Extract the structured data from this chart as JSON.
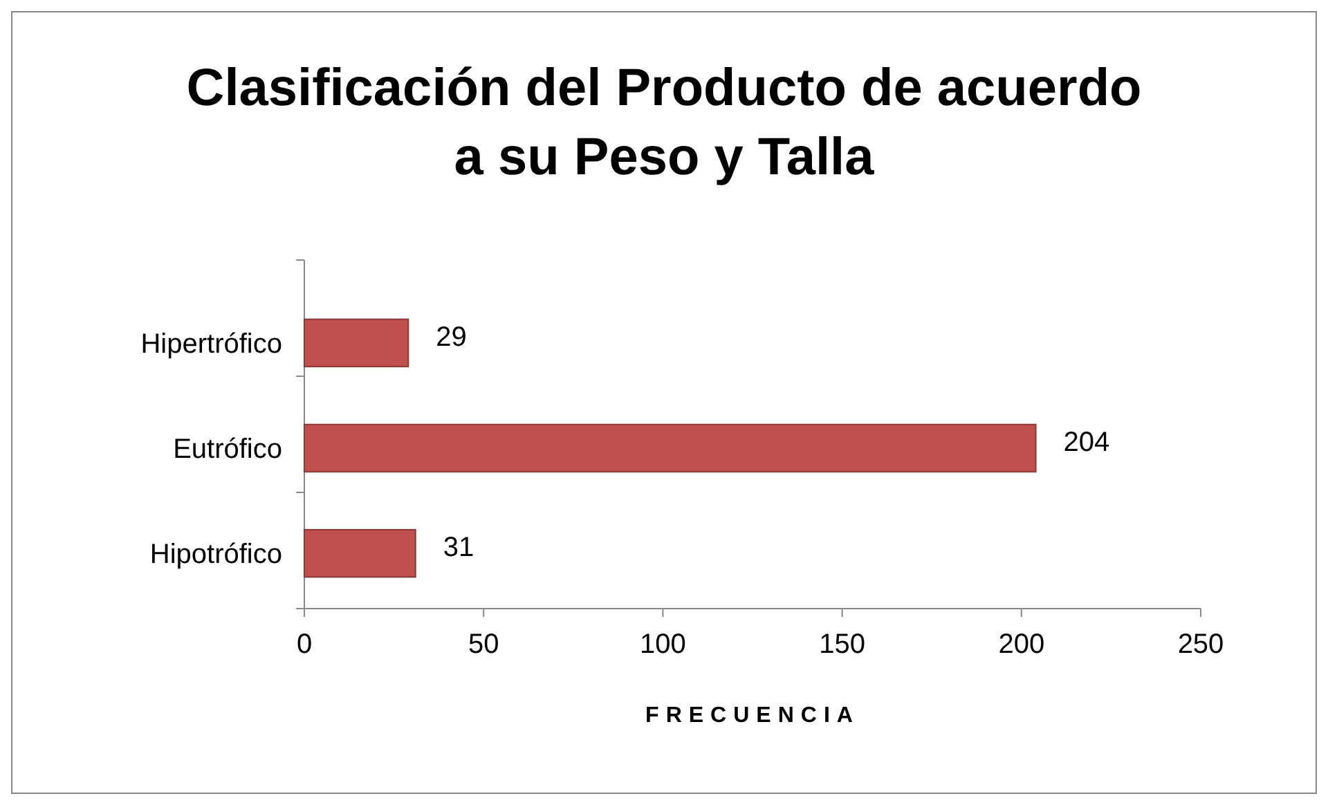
{
  "chart_data": {
    "type": "bar",
    "title": "Clasificación del Producto de acuerdo a su Peso y Talla",
    "orientation": "horizontal",
    "categories": [
      "Hipertrófico",
      "Eutrófico",
      "Hipotrófico"
    ],
    "values": [
      29,
      204,
      31
    ],
    "color": "#c0504d",
    "xlim": [
      0,
      250
    ],
    "xticks": [
      0,
      50,
      100,
      150,
      200,
      250
    ],
    "xlabel": "FRECUENCIA",
    "data_labels": true
  }
}
